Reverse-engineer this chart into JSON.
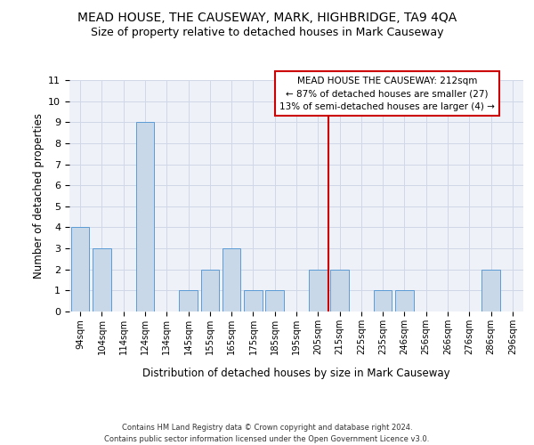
{
  "title1": "MEAD HOUSE, THE CAUSEWAY, MARK, HIGHBRIDGE, TA9 4QA",
  "title2": "Size of property relative to detached houses in Mark Causeway",
  "xlabel": "Distribution of detached houses by size in Mark Causeway",
  "ylabel": "Number of detached properties",
  "footer1": "Contains HM Land Registry data © Crown copyright and database right 2024.",
  "footer2": "Contains public sector information licensed under the Open Government Licence v3.0.",
  "annotation_line1": "MEAD HOUSE THE CAUSEWAY: 212sqm",
  "annotation_line2": "← 87% of detached houses are smaller (27)",
  "annotation_line3": "13% of semi-detached houses are larger (4) →",
  "bin_labels": [
    "94sqm",
    "104sqm",
    "114sqm",
    "124sqm",
    "134sqm",
    "145sqm",
    "155sqm",
    "165sqm",
    "175sqm",
    "185sqm",
    "195sqm",
    "205sqm",
    "215sqm",
    "225sqm",
    "235sqm",
    "246sqm",
    "256sqm",
    "266sqm",
    "276sqm",
    "286sqm",
    "296sqm"
  ],
  "bin_values": [
    4,
    3,
    0,
    9,
    0,
    1,
    2,
    3,
    1,
    1,
    0,
    2,
    2,
    0,
    1,
    1,
    0,
    0,
    0,
    2,
    0
  ],
  "bar_color": "#c8d8e8",
  "bar_edge_color": "#5b9bd5",
  "vline_color": "#cc0000",
  "ylim_max": 11,
  "grid_color": "#d0d8e8",
  "bg_color": "#eef2f8",
  "ann_box_color": "#ffffff",
  "ann_box_edge": "#cc0000"
}
